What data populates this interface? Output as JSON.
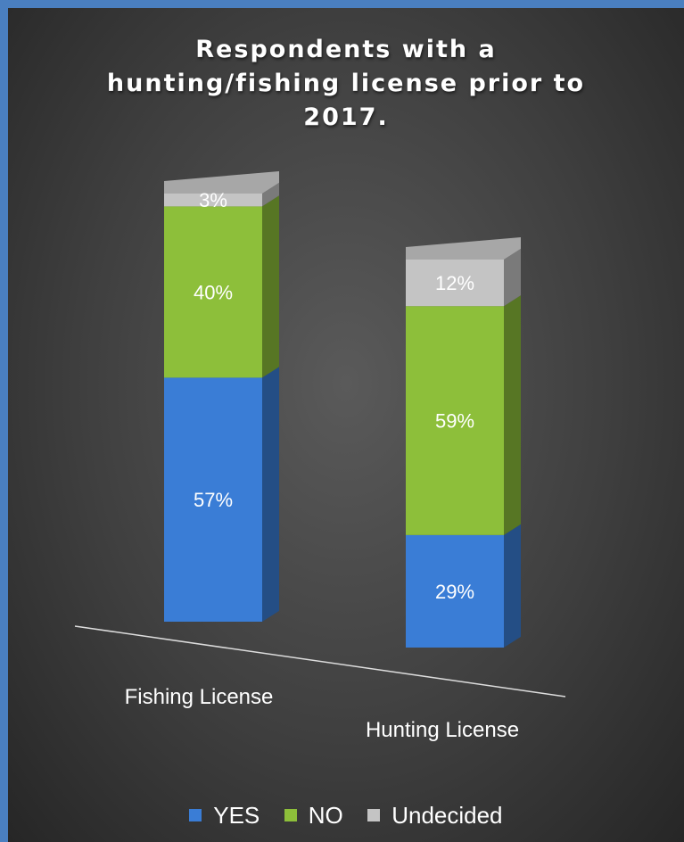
{
  "chart_data": {
    "type": "bar",
    "stacked": true,
    "three_d": true,
    "title": "Respondents with a hunting/fishing license prior to 2017.",
    "title_lines": [
      "Respondents with a",
      "hunting/fishing license prior to",
      "2017."
    ],
    "categories": [
      "Fishing License",
      "Hunting License"
    ],
    "series": [
      {
        "name": "YES",
        "values": [
          57,
          29
        ],
        "labels": [
          "57%",
          "29%"
        ],
        "color": "#3a7dd6"
      },
      {
        "name": "NO",
        "values": [
          40,
          59
        ],
        "labels": [
          "40%",
          "59%"
        ],
        "color": "#8dbf3a"
      },
      {
        "name": "Undecided",
        "values": [
          3,
          12
        ],
        "labels": [
          "3%",
          "12%"
        ],
        "color": "#c4c4c4"
      }
    ],
    "unit": "%",
    "ylim": [
      0,
      100
    ],
    "legend_position": "bottom",
    "grid": false
  },
  "colors": {
    "background": "#3f3f3f",
    "border": "#4a7fc0",
    "text": "#ffffff"
  }
}
